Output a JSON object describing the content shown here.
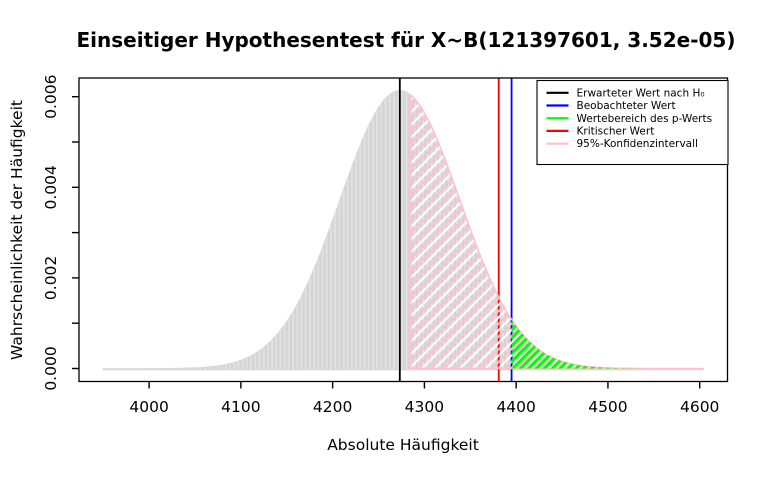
{
  "chart_data": {
    "type": "area",
    "title": "Einseitiger Hypothesentest für X~B(121397601, 3.52e-05)",
    "xlabel": "Absolute Häufigkeit",
    "ylabel": "Wahrscheinlichkeit der Häufigkeit",
    "x_ticks": [
      4000,
      4100,
      4200,
      4300,
      4400,
      4500,
      4600
    ],
    "y_ticks": [
      {
        "value": 0.0,
        "label": "0.000"
      },
      {
        "value": 0.001,
        "label": ""
      },
      {
        "value": 0.002,
        "label": "0.002"
      },
      {
        "value": 0.003,
        "label": ""
      },
      {
        "value": 0.004,
        "label": "0.004"
      },
      {
        "value": 0.005,
        "label": ""
      },
      {
        "value": 0.006,
        "label": "0.006"
      }
    ],
    "xlim": [
      3923.6,
      4630.3
    ],
    "ylim": [
      -0.000287,
      0.006413
    ],
    "grid": false,
    "legend_position": "top-right",
    "distribution": {
      "family": "binomial",
      "n": 121397601,
      "p": 3.52e-05,
      "mean": 4273.2,
      "sd": 65.4,
      "peak_probability": 0.00614,
      "curve_range": [
        3950,
        4604
      ]
    },
    "markers": [
      {
        "name": "expected",
        "value": 4273.2,
        "color": "#000000",
        "label": "Erwarteter Wert nach H₀"
      },
      {
        "name": "critical",
        "value": 4381,
        "color": "#FF0000",
        "label": "Kritischer Wert"
      },
      {
        "name": "observed",
        "value": 4395,
        "color": "#0000FF",
        "label": "Beobachteter Wert"
      }
    ],
    "regions": [
      {
        "name": "confidence-interval-region",
        "from": 4285,
        "to": 4604,
        "color": "#FFC0CB",
        "label": "95%-Konfidenzintervall"
      },
      {
        "name": "p-value-region",
        "from": 4395,
        "to": 4604,
        "color": "#00FF00",
        "label": "Wertebereich des p-Werts"
      }
    ],
    "legend": [
      {
        "label": "Erwarteter Wert nach H₀",
        "color": "#000000"
      },
      {
        "label": "Beobachteter Wert",
        "color": "#0000FF"
      },
      {
        "label": "Wertebereich des p-Werts",
        "color": "#00FF00"
      },
      {
        "label": "Kritischer Wert",
        "color": "#FF0000"
      },
      {
        "label": "95%-Konfidenzintervall",
        "color": "#FFC0CB"
      }
    ],
    "curve_fill_color": "#d4d4d4",
    "curve_stripe_color": "#e2e2e2",
    "curve_edge_color": "#dadada"
  }
}
